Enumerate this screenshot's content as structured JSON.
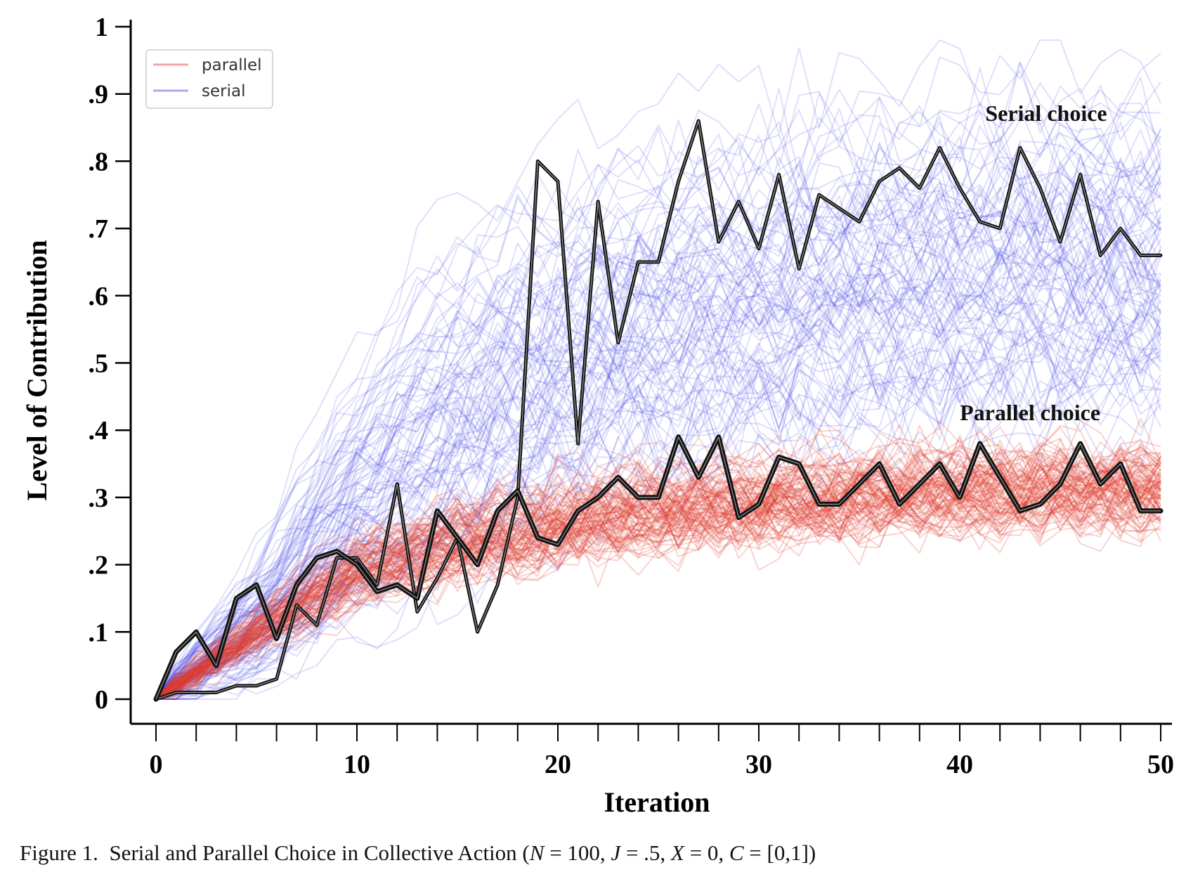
{
  "chart_data": {
    "type": "line",
    "xlabel": "Iteration",
    "ylabel": "Level of Contribution",
    "xlim": [
      0,
      50
    ],
    "ylim": [
      0,
      1
    ],
    "x_ticks": [
      0,
      10,
      20,
      30,
      40,
      50
    ],
    "x_tick_labels": [
      "0",
      "10",
      "20",
      "30",
      "40",
      "50"
    ],
    "y_ticks": [
      0,
      0.1,
      0.2,
      0.3,
      0.4,
      0.5,
      0.6,
      0.7,
      0.8,
      0.9,
      1
    ],
    "y_tick_labels": [
      "0",
      ".1",
      ".2",
      ".3",
      ".4",
      ".5",
      ".6",
      ".7",
      ".8",
      ".9",
      "1"
    ],
    "grid": false,
    "legend": {
      "placement": "top-left",
      "entries": [
        {
          "label": "parallel",
          "color": "#f4a3a3"
        },
        {
          "label": "serial",
          "color": "#a9a9f2"
        }
      ]
    },
    "colors": {
      "parallel": "#e03a2e",
      "serial": "#3a3ae8",
      "highlight": "#111111"
    },
    "ensemble_runs": {
      "parallel": {
        "count": 100,
        "mean_x": [
          0,
          5,
          10,
          15,
          20,
          25,
          30,
          35,
          40,
          45,
          50
        ],
        "mean_y": [
          0,
          0.1,
          0.19,
          0.23,
          0.26,
          0.28,
          0.29,
          0.3,
          0.31,
          0.31,
          0.31
        ]
      },
      "serial": {
        "count": 100,
        "mean_x": [
          0,
          5,
          10,
          15,
          20,
          25,
          30,
          35,
          40,
          45,
          50
        ],
        "mean_y": [
          0,
          0.12,
          0.3,
          0.44,
          0.52,
          0.57,
          0.61,
          0.63,
          0.65,
          0.66,
          0.66
        ]
      }
    },
    "series": [
      {
        "name": "Serial choice",
        "x": [
          0,
          1,
          2,
          3,
          4,
          5,
          6,
          7,
          8,
          9,
          10,
          11,
          12,
          13,
          14,
          15,
          16,
          17,
          18,
          19,
          20,
          21,
          22,
          23,
          24,
          25,
          26,
          27,
          28,
          29,
          30,
          31,
          32,
          33,
          34,
          35,
          36,
          37,
          38,
          39,
          40,
          41,
          42,
          43,
          44,
          45,
          46,
          47,
          48,
          49,
          50
        ],
        "y": [
          0,
          0.01,
          0.01,
          0.01,
          0.02,
          0.02,
          0.03,
          0.14,
          0.11,
          0.21,
          0.21,
          0.17,
          0.32,
          0.13,
          0.18,
          0.24,
          0.1,
          0.17,
          0.3,
          0.8,
          0.77,
          0.38,
          0.74,
          0.53,
          0.65,
          0.65,
          0.77,
          0.86,
          0.68,
          0.74,
          0.67,
          0.78,
          0.64,
          0.75,
          0.73,
          0.71,
          0.77,
          0.79,
          0.76,
          0.82,
          0.76,
          0.71,
          0.7,
          0.82,
          0.76,
          0.68,
          0.78,
          0.66,
          0.7,
          0.66,
          0.66
        ]
      },
      {
        "name": "Parallel choice",
        "x": [
          0,
          1,
          2,
          3,
          4,
          5,
          6,
          7,
          8,
          9,
          10,
          11,
          12,
          13,
          14,
          15,
          16,
          17,
          18,
          19,
          20,
          21,
          22,
          23,
          24,
          25,
          26,
          27,
          28,
          29,
          30,
          31,
          32,
          33,
          34,
          35,
          36,
          37,
          38,
          39,
          40,
          41,
          42,
          43,
          44,
          45,
          46,
          47,
          48,
          49,
          50
        ],
        "y": [
          0,
          0.07,
          0.1,
          0.05,
          0.15,
          0.17,
          0.09,
          0.17,
          0.21,
          0.22,
          0.2,
          0.16,
          0.17,
          0.15,
          0.28,
          0.24,
          0.2,
          0.28,
          0.31,
          0.24,
          0.23,
          0.28,
          0.3,
          0.33,
          0.3,
          0.3,
          0.39,
          0.33,
          0.39,
          0.27,
          0.29,
          0.36,
          0.35,
          0.29,
          0.29,
          0.32,
          0.35,
          0.29,
          0.32,
          0.35,
          0.3,
          0.38,
          0.33,
          0.28,
          0.29,
          0.32,
          0.38,
          0.32,
          0.35,
          0.28,
          0.28
        ]
      }
    ],
    "annotations": [
      {
        "text": "Serial choice",
        "x": 44.3,
        "y": 0.86
      },
      {
        "text": "Parallel choice",
        "x": 43.5,
        "y": 0.415
      }
    ]
  },
  "caption": {
    "prefix": "Figure 1.",
    "text_1": "Serial and Parallel Choice in Collective Action (",
    "n_sym": "N",
    "n_val": " = 100, ",
    "j_sym": "J",
    "j_val": " = .5, ",
    "x_sym": "X",
    "x_val": " = 0, ",
    "c_sym": "C",
    "c_val": " = [0,1])"
  }
}
